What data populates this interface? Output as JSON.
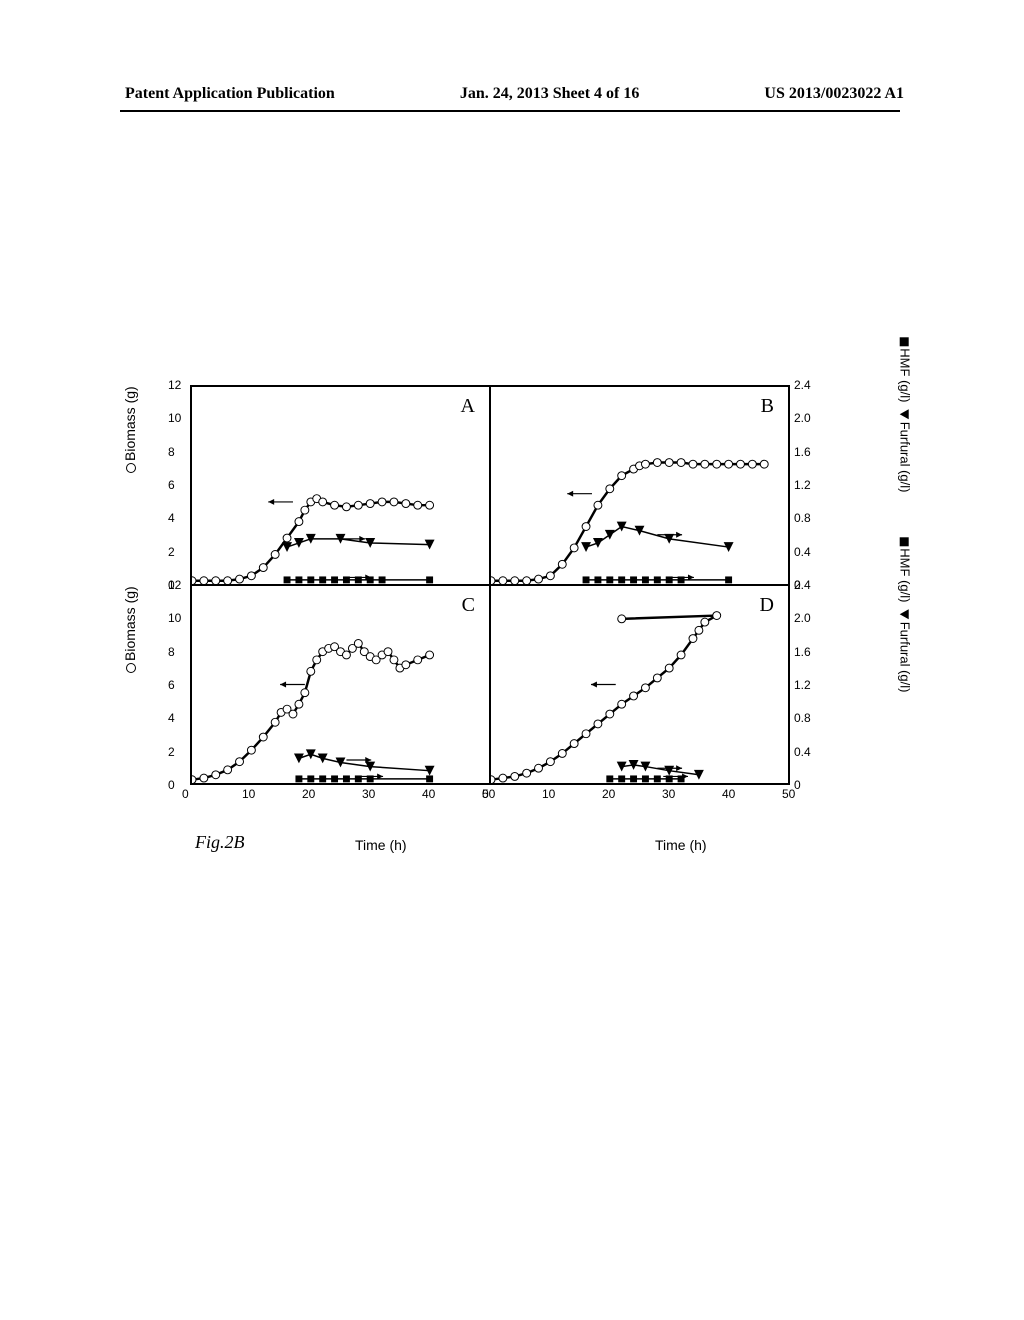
{
  "header": {
    "left": "Patent Application Publication",
    "center": "Jan. 24, 2013  Sheet 4 of 16",
    "right": "US 2013/0023022 A1"
  },
  "figure": {
    "label": "Fig.2B",
    "panels": [
      "A",
      "B",
      "C",
      "D"
    ],
    "x_axis": {
      "label": "Time (h)",
      "min": 0,
      "max": 50,
      "ticks": [
        0,
        10,
        20,
        30,
        40,
        50
      ]
    },
    "y_left": {
      "label": "Biomass (g)",
      "legend_marker": "circle",
      "min": 0,
      "max": 12,
      "ticks": [
        0,
        2,
        4,
        6,
        8,
        10,
        12
      ]
    },
    "y_right": {
      "label_hmf": "HMF (g/l)",
      "label_furfural": "Furfural (g/l)",
      "marker_hmf": "square",
      "marker_furfural": "triangle",
      "min": 0,
      "max": 2.4,
      "ticks": [
        0,
        0.4,
        0.8,
        1.2,
        1.6,
        2.0,
        2.4
      ]
    },
    "colors": {
      "line": "#000000",
      "marker_stroke": "#000000",
      "marker_fill_open": "#ffffff",
      "marker_fill_solid": "#000000",
      "background": "#ffffff",
      "axis": "#000000"
    },
    "style": {
      "line_width": 2.5,
      "marker_size": 4,
      "tick_fontsize": 12,
      "label_fontsize": 14,
      "panel_label_fontsize": 20
    },
    "data": {
      "A": {
        "biomass": [
          [
            0,
            0.2
          ],
          [
            2,
            0.2
          ],
          [
            4,
            0.2
          ],
          [
            6,
            0.2
          ],
          [
            8,
            0.3
          ],
          [
            10,
            0.5
          ],
          [
            12,
            1.0
          ],
          [
            14,
            1.8
          ],
          [
            16,
            2.8
          ],
          [
            18,
            3.8
          ],
          [
            19,
            4.5
          ],
          [
            20,
            5.0
          ],
          [
            21,
            5.2
          ],
          [
            22,
            5.0
          ],
          [
            24,
            4.8
          ],
          [
            26,
            4.7
          ],
          [
            28,
            4.8
          ],
          [
            30,
            4.9
          ],
          [
            32,
            5.0
          ],
          [
            34,
            5.0
          ],
          [
            36,
            4.9
          ],
          [
            38,
            4.8
          ],
          [
            40,
            4.8
          ]
        ],
        "furfural": [
          [
            16,
            0.45
          ],
          [
            18,
            0.5
          ],
          [
            20,
            0.55
          ],
          [
            25,
            0.55
          ],
          [
            30,
            0.5
          ],
          [
            40,
            0.48
          ]
        ],
        "hmf": [
          [
            16,
            0.05
          ],
          [
            18,
            0.05
          ],
          [
            20,
            0.05
          ],
          [
            22,
            0.05
          ],
          [
            24,
            0.05
          ],
          [
            26,
            0.05
          ],
          [
            28,
            0.05
          ],
          [
            30,
            0.05
          ],
          [
            32,
            0.05
          ],
          [
            40,
            0.05
          ]
        ],
        "arrows": [
          {
            "x": 17,
            "y": 1.0,
            "dir": "left"
          },
          {
            "x": 25,
            "y": 0.55,
            "dir": "right"
          },
          {
            "x": 26,
            "y": 0.08,
            "dir": "right"
          }
        ]
      },
      "B": {
        "biomass": [
          [
            0,
            0.2
          ],
          [
            2,
            0.2
          ],
          [
            4,
            0.2
          ],
          [
            6,
            0.2
          ],
          [
            8,
            0.3
          ],
          [
            10,
            0.5
          ],
          [
            12,
            1.2
          ],
          [
            14,
            2.2
          ],
          [
            16,
            3.5
          ],
          [
            18,
            4.8
          ],
          [
            20,
            5.8
          ],
          [
            22,
            6.6
          ],
          [
            24,
            7.0
          ],
          [
            25,
            7.2
          ],
          [
            26,
            7.3
          ],
          [
            28,
            7.4
          ],
          [
            30,
            7.4
          ],
          [
            32,
            7.4
          ],
          [
            34,
            7.3
          ],
          [
            36,
            7.3
          ],
          [
            38,
            7.3
          ],
          [
            40,
            7.3
          ],
          [
            42,
            7.3
          ],
          [
            44,
            7.3
          ],
          [
            46,
            7.3
          ]
        ],
        "furfural": [
          [
            16,
            0.45
          ],
          [
            18,
            0.5
          ],
          [
            20,
            0.6
          ],
          [
            22,
            0.7
          ],
          [
            25,
            0.65
          ],
          [
            30,
            0.55
          ],
          [
            40,
            0.45
          ]
        ],
        "hmf": [
          [
            16,
            0.05
          ],
          [
            18,
            0.05
          ],
          [
            20,
            0.05
          ],
          [
            22,
            0.05
          ],
          [
            24,
            0.05
          ],
          [
            26,
            0.05
          ],
          [
            28,
            0.05
          ],
          [
            30,
            0.05
          ],
          [
            32,
            0.05
          ],
          [
            40,
            0.05
          ]
        ],
        "arrows": [
          {
            "x": 17,
            "y": 1.1,
            "dir": "left"
          },
          {
            "x": 28,
            "y": 0.6,
            "dir": "right"
          },
          {
            "x": 30,
            "y": 0.08,
            "dir": "right"
          }
        ]
      },
      "C": {
        "biomass": [
          [
            0,
            0.2
          ],
          [
            2,
            0.3
          ],
          [
            4,
            0.5
          ],
          [
            6,
            0.8
          ],
          [
            8,
            1.3
          ],
          [
            10,
            2.0
          ],
          [
            12,
            2.8
          ],
          [
            14,
            3.7
          ],
          [
            15,
            4.3
          ],
          [
            16,
            4.5
          ],
          [
            17,
            4.2
          ],
          [
            18,
            4.8
          ],
          [
            19,
            5.5
          ],
          [
            20,
            6.8
          ],
          [
            21,
            7.5
          ],
          [
            22,
            8.0
          ],
          [
            23,
            8.2
          ],
          [
            24,
            8.3
          ],
          [
            25,
            8.0
          ],
          [
            26,
            7.8
          ],
          [
            27,
            8.2
          ],
          [
            28,
            8.5
          ],
          [
            29,
            8.0
          ],
          [
            30,
            7.7
          ],
          [
            31,
            7.5
          ],
          [
            32,
            7.8
          ],
          [
            33,
            8.0
          ],
          [
            34,
            7.5
          ],
          [
            35,
            7.0
          ],
          [
            36,
            7.2
          ],
          [
            38,
            7.5
          ],
          [
            40,
            7.8
          ]
        ],
        "furfural": [
          [
            18,
            0.3
          ],
          [
            20,
            0.35
          ],
          [
            22,
            0.3
          ],
          [
            25,
            0.25
          ],
          [
            30,
            0.2
          ],
          [
            40,
            0.15
          ]
        ],
        "hmf": [
          [
            18,
            0.05
          ],
          [
            20,
            0.05
          ],
          [
            22,
            0.05
          ],
          [
            24,
            0.05
          ],
          [
            26,
            0.05
          ],
          [
            28,
            0.05
          ],
          [
            30,
            0.05
          ],
          [
            40,
            0.05
          ]
        ],
        "arrows": [
          {
            "x": 19,
            "y": 1.2,
            "dir": "left"
          },
          {
            "x": 26,
            "y": 0.28,
            "dir": "right"
          },
          {
            "x": 28,
            "y": 0.08,
            "dir": "right"
          }
        ]
      },
      "D": {
        "biomass": [
          [
            0,
            0.2
          ],
          [
            2,
            0.3
          ],
          [
            4,
            0.4
          ],
          [
            6,
            0.6
          ],
          [
            8,
            0.9
          ],
          [
            10,
            1.3
          ],
          [
            12,
            1.8
          ],
          [
            14,
            2.4
          ],
          [
            16,
            3.0
          ],
          [
            18,
            3.6
          ],
          [
            20,
            4.2
          ],
          [
            22,
            4.8
          ],
          [
            24,
            5.3
          ],
          [
            26,
            5.8
          ],
          [
            28,
            6.4
          ],
          [
            30,
            7.0
          ],
          [
            32,
            7.8
          ],
          [
            34,
            8.8
          ],
          [
            35,
            9.3
          ],
          [
            36,
            9.8
          ],
          [
            38,
            10.2
          ],
          [
            22,
            10.0
          ]
        ],
        "furfural": [
          [
            22,
            0.2
          ],
          [
            24,
            0.22
          ],
          [
            26,
            0.2
          ],
          [
            30,
            0.15
          ],
          [
            35,
            0.1
          ]
        ],
        "hmf": [
          [
            20,
            0.05
          ],
          [
            22,
            0.05
          ],
          [
            24,
            0.05
          ],
          [
            26,
            0.05
          ],
          [
            28,
            0.05
          ],
          [
            30,
            0.05
          ],
          [
            32,
            0.05
          ]
        ],
        "arrows": [
          {
            "x": 21,
            "y": 1.2,
            "dir": "left"
          },
          {
            "x": 28,
            "y": 0.18,
            "dir": "right"
          },
          {
            "x": 29,
            "y": 0.08,
            "dir": "right"
          }
        ]
      }
    }
  }
}
